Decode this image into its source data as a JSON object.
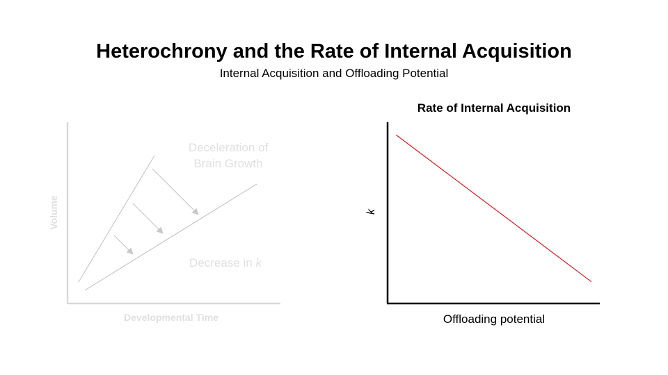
{
  "header": {
    "title": "Heterochrony and the Rate of Internal Acquisition",
    "subtitle": "Internal Acquisition and Offloading Potential"
  },
  "left_diagram": {
    "ylabel": "Volume",
    "xlabel": "Developmental Time",
    "annotation_top_line1": "Deceleration of",
    "annotation_top_line2": "Brain Growth",
    "annotation_bottom_prefix": "Decrease in ",
    "annotation_bottom_var": "k",
    "colors": {
      "axis": "#d9d9d9",
      "lines": "#c8c8c8",
      "text": "#e0e0e0"
    }
  },
  "right_chart": {
    "title": "Rate of Internal Acquisition",
    "ylabel": "k",
    "xlabel": "Offloading potential",
    "colors": {
      "line": "#e0191f",
      "axis": "#000000"
    }
  },
  "chart_data": {
    "type": "line",
    "title": "Rate of Internal Acquisition",
    "xlabel": "Offloading potential",
    "ylabel": "k",
    "series": [
      {
        "x": [
          0.04,
          0.96
        ],
        "y": [
          0.93,
          0.12
        ]
      }
    ],
    "xlim": [
      0,
      1
    ],
    "ylim": [
      0,
      1
    ],
    "grid": false
  }
}
